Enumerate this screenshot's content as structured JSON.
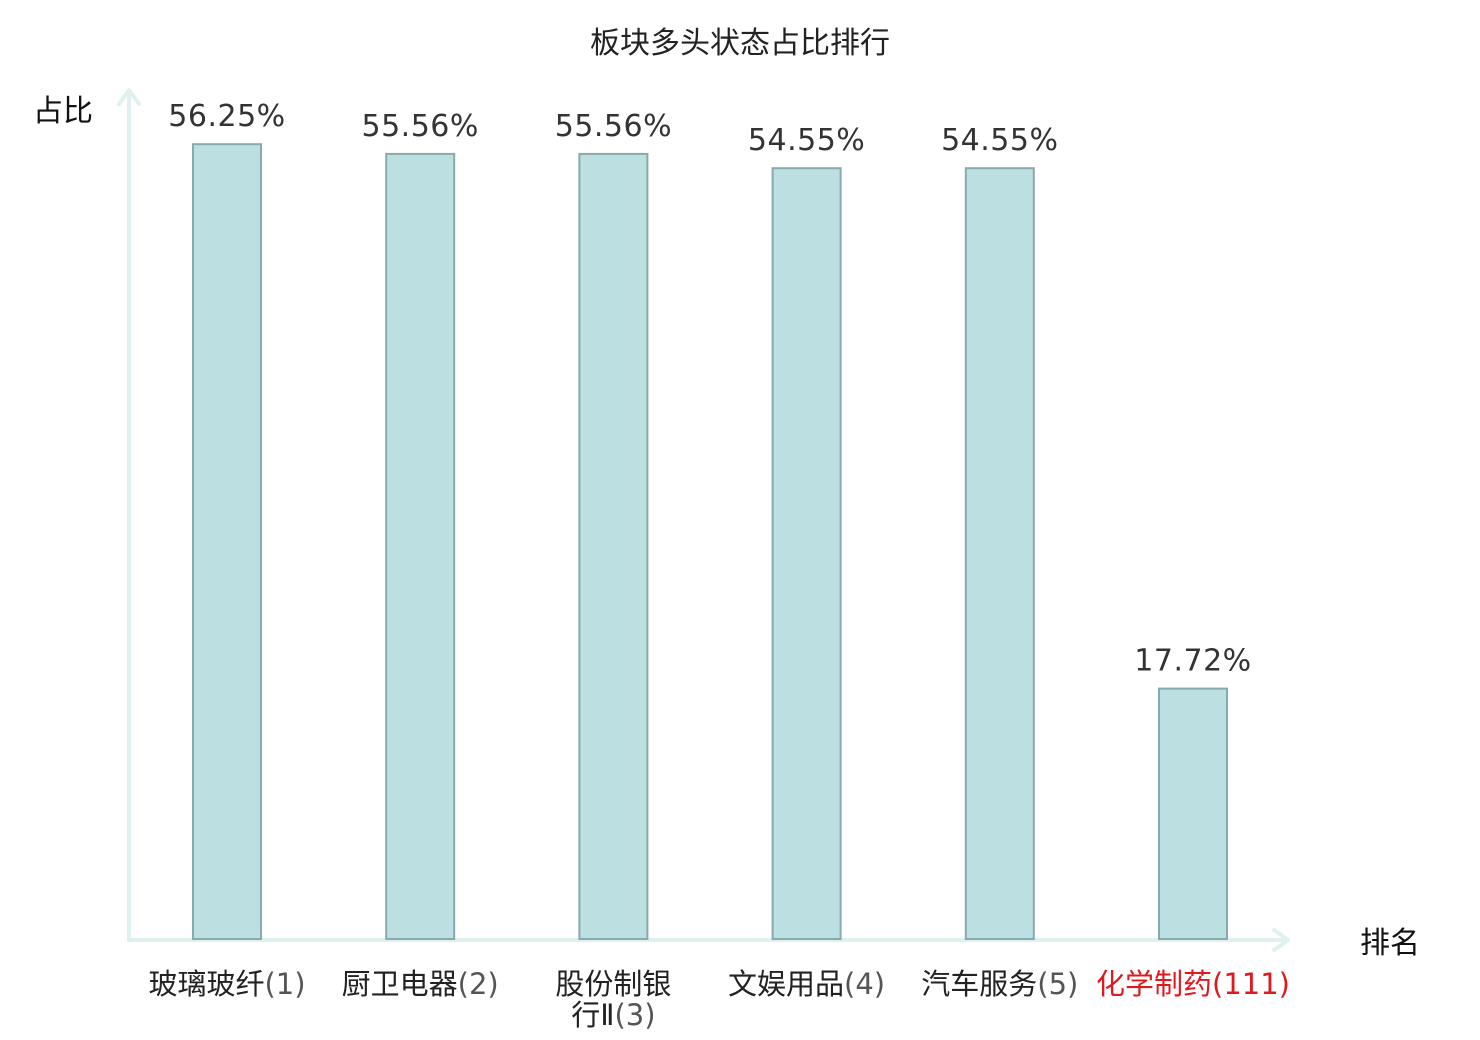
{
  "chart_data": {
    "type": "bar",
    "title": "板块多头状态占比排行",
    "ylabel": "占比",
    "xlabel": "排名",
    "ylim": [
      0,
      60
    ],
    "value_suffix": "%",
    "categories": [
      {
        "name": "玻璃玻纤",
        "rank": "(1)",
        "highlight": false
      },
      {
        "name": "厨卫电器",
        "rank": "(2)",
        "highlight": false
      },
      {
        "name": "股份制银行Ⅱ",
        "rank": "(3)",
        "highlight": false
      },
      {
        "name": "文娱用品",
        "rank": "(4)",
        "highlight": false
      },
      {
        "name": "汽车服务",
        "rank": "(5)",
        "highlight": false
      },
      {
        "name": "化学制药",
        "rank": "(111)",
        "highlight": true
      }
    ],
    "values": [
      56.25,
      55.56,
      55.56,
      54.55,
      54.55,
      17.72
    ],
    "value_labels": [
      "56.25%",
      "55.56%",
      "55.56%",
      "54.55%",
      "54.55%",
      "17.72%"
    ],
    "grid": false,
    "legend": "none",
    "colors": {
      "bar_fill": "#bce0e2",
      "bar_stroke": "#8aa9aa",
      "axis": "#dff1ee",
      "highlight": "#e0191e"
    }
  }
}
